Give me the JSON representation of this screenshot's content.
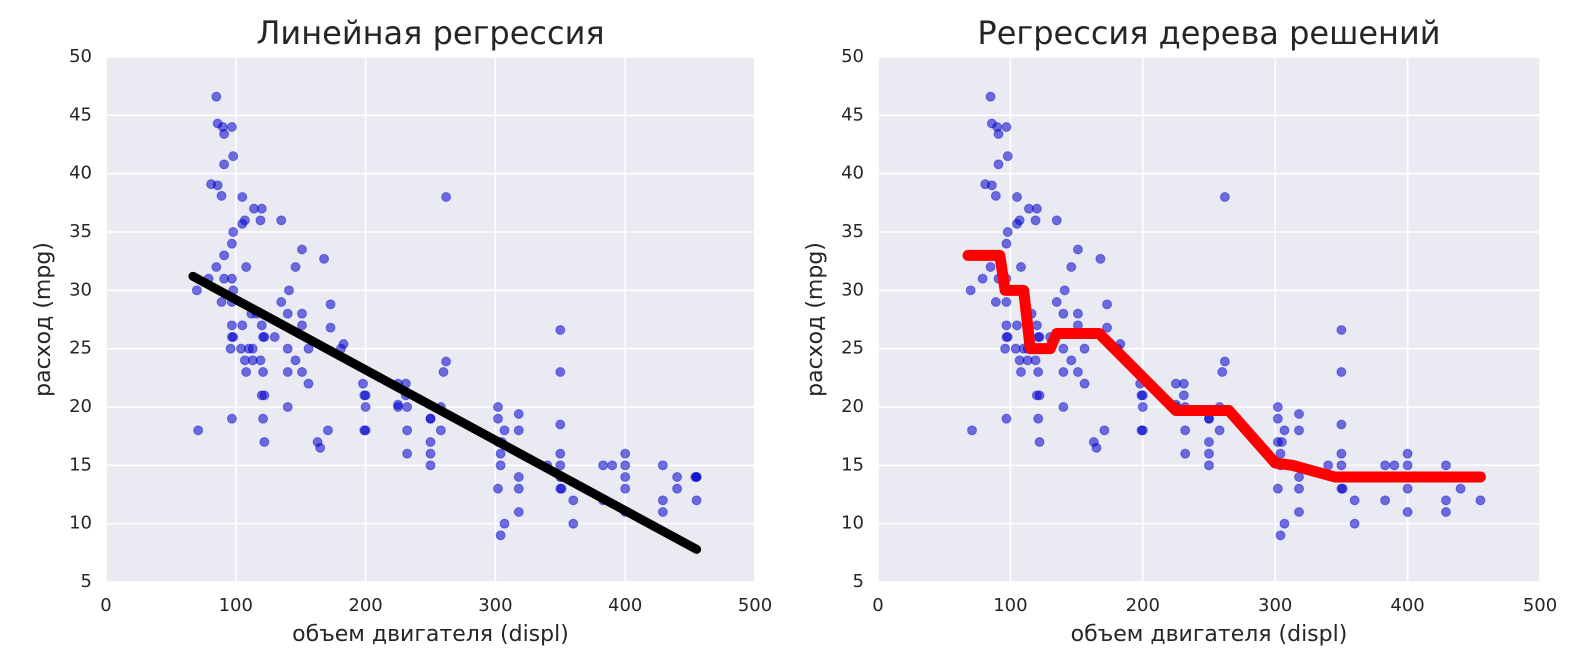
{
  "chart_data": [
    {
      "type": "scatter",
      "title": "Линейная регрессия",
      "x_label": "объем двигателя (displ)",
      "y_label": "расход (mpg)",
      "xlim": [
        0,
        500
      ],
      "ylim": [
        5,
        50
      ],
      "xticks": [
        0,
        100,
        200,
        300,
        400,
        500
      ],
      "yticks": [
        5,
        10,
        15,
        20,
        25,
        30,
        35,
        40,
        45,
        50
      ],
      "grid": true,
      "series": [
        {
          "type": "scatter",
          "color": "#0000cc",
          "x": [
            307,
            350,
            318,
            304,
            302,
            429,
            454,
            440,
            455,
            390,
            383,
            340,
            400,
            455,
            113,
            198,
            199,
            200,
            97,
            97,
            110,
            107,
            104,
            121,
            199,
            360,
            307,
            318,
            304,
            140,
            250,
            232,
            122,
            97,
            71,
            98,
            70,
            91,
            120,
            97,
            79,
            96,
            400,
            351,
            318,
            304,
            429,
            350,
            225,
            250,
            250,
            232,
            302,
            225,
            108,
            85,
            89,
            98,
            146,
            121,
            156,
            350,
            400,
            231,
            262,
            350,
            350,
            302,
            305,
            318,
            85,
            90,
            86,
            91,
            97,
            98,
            105,
            89,
            81,
            91,
            135,
            119,
            105,
            107,
            114,
            120,
            86,
            97,
            151,
            151,
            173,
            173,
            141,
            146,
            168,
            135,
            140,
            163,
            165,
            181,
            183,
            231,
            258,
            258,
            225,
            260,
            262,
            350,
            360,
            400,
            440,
            455,
            383,
            429,
            113,
            119,
            120,
            121,
            122,
            122,
            116,
            108,
            91,
            97,
            98,
            105,
            112,
            130,
            140,
            140,
            151,
            151,
            156,
            171,
            200,
            200,
            232,
            250,
            250,
            318,
            302,
            350,
            351,
            400
          ],
          "values": [
            18,
            15,
            18,
            16,
            17,
            15,
            14,
            14,
            14,
            15,
            15,
            15,
            14,
            14,
            24,
            22,
            18,
            21,
            27,
            26,
            25,
            24,
            25,
            26,
            21,
            10,
            10,
            11,
            9,
            28,
            19,
            16,
            17,
            19,
            18,
            35,
            30,
            31,
            27,
            29,
            31,
            25,
            13,
            13,
            14,
            15,
            12,
            13,
            20,
            19,
            15,
            18,
            20,
            22,
            23,
            32,
            29,
            26,
            24,
            23,
            25,
            16,
            16,
            22,
            38,
            26.6,
            23,
            19,
            17,
            19.4,
            46.6,
            44,
            44.3,
            43.4,
            44,
            41.5,
            38,
            38.1,
            39.1,
            40.8,
            36,
            36,
            35.7,
            36,
            37,
            37,
            39,
            34,
            33.5,
            27,
            28.8,
            26.8,
            30,
            32,
            32.7,
            29,
            20,
            17,
            16.5,
            25,
            25.4,
            21,
            18,
            20,
            20.2,
            23,
            23.9,
            18.5,
            12,
            11,
            13,
            12,
            12,
            11,
            25,
            24,
            21,
            19,
            21,
            26,
            28,
            32,
            33,
            31,
            30,
            27,
            28,
            26,
            23,
            25,
            23,
            28,
            22,
            18,
            18,
            20,
            20,
            16,
            17,
            13,
            13,
            14,
            14,
            15
          ]
        },
        {
          "type": "line",
          "color": "#000000",
          "x": [
            67,
            455
          ],
          "values": [
            31.2,
            7.8
          ]
        }
      ]
    },
    {
      "type": "scatter",
      "title": "Регрессия дерева решений",
      "x_label": "объем двигателя (displ)",
      "y_label": "расход (mpg)",
      "xlim": [
        0,
        500
      ],
      "ylim": [
        5,
        50
      ],
      "xticks": [
        0,
        100,
        200,
        300,
        400,
        500
      ],
      "yticks": [
        5,
        10,
        15,
        20,
        25,
        30,
        35,
        40,
        45,
        50
      ],
      "grid": true,
      "series": [
        {
          "type": "scatter",
          "color": "#0000cc",
          "x": [
            307,
            350,
            318,
            304,
            302,
            429,
            454,
            440,
            455,
            390,
            383,
            340,
            400,
            455,
            113,
            198,
            199,
            200,
            97,
            97,
            110,
            107,
            104,
            121,
            199,
            360,
            307,
            318,
            304,
            140,
            250,
            232,
            122,
            97,
            71,
            98,
            70,
            91,
            120,
            97,
            79,
            96,
            400,
            351,
            318,
            304,
            429,
            350,
            225,
            250,
            250,
            232,
            302,
            225,
            108,
            85,
            89,
            98,
            146,
            121,
            156,
            350,
            400,
            231,
            262,
            350,
            350,
            302,
            305,
            318,
            85,
            90,
            86,
            91,
            97,
            98,
            105,
            89,
            81,
            91,
            135,
            119,
            105,
            107,
            114,
            120,
            86,
            97,
            151,
            151,
            173,
            173,
            141,
            146,
            168,
            135,
            140,
            163,
            165,
            181,
            183,
            231,
            258,
            258,
            225,
            260,
            262,
            350,
            360,
            400,
            440,
            455,
            383,
            429,
            113,
            119,
            120,
            121,
            122,
            122,
            116,
            108,
            91,
            97,
            98,
            105,
            112,
            130,
            140,
            140,
            151,
            151,
            156,
            171,
            200,
            200,
            232,
            250,
            250,
            318,
            302,
            350,
            351,
            400
          ],
          "values": [
            18,
            15,
            18,
            16,
            17,
            15,
            14,
            14,
            14,
            15,
            15,
            15,
            14,
            14,
            24,
            22,
            18,
            21,
            27,
            26,
            25,
            24,
            25,
            26,
            21,
            10,
            10,
            11,
            9,
            28,
            19,
            16,
            17,
            19,
            18,
            35,
            30,
            31,
            27,
            29,
            31,
            25,
            13,
            13,
            14,
            15,
            12,
            13,
            20,
            19,
            15,
            18,
            20,
            22,
            23,
            32,
            29,
            26,
            24,
            23,
            25,
            16,
            16,
            22,
            38,
            26.6,
            23,
            19,
            17,
            19.4,
            46.6,
            44,
            44.3,
            43.4,
            44,
            41.5,
            38,
            38.1,
            39.1,
            40.8,
            36,
            36,
            35.7,
            36,
            37,
            37,
            39,
            34,
            33.5,
            27,
            28.8,
            26.8,
            30,
            32,
            32.7,
            29,
            20,
            17,
            16.5,
            25,
            25.4,
            21,
            18,
            20,
            20.2,
            23,
            23.9,
            18.5,
            12,
            11,
            13,
            12,
            12,
            11,
            25,
            24,
            21,
            19,
            21,
            26,
            28,
            32,
            33,
            31,
            30,
            27,
            28,
            26,
            23,
            25,
            23,
            28,
            22,
            18,
            18,
            20,
            20,
            16,
            17,
            13,
            13,
            14,
            14,
            15
          ]
        },
        {
          "type": "line",
          "color": "#ff0000",
          "x": [
            68,
            92,
            96,
            110,
            115,
            130,
            135,
            167,
            225,
            265,
            300,
            313,
            345,
            455
          ],
          "values": [
            33,
            33,
            30,
            30,
            25,
            25,
            26.3,
            26.3,
            19.7,
            19.7,
            15.2,
            15,
            14,
            14
          ]
        }
      ]
    }
  ]
}
